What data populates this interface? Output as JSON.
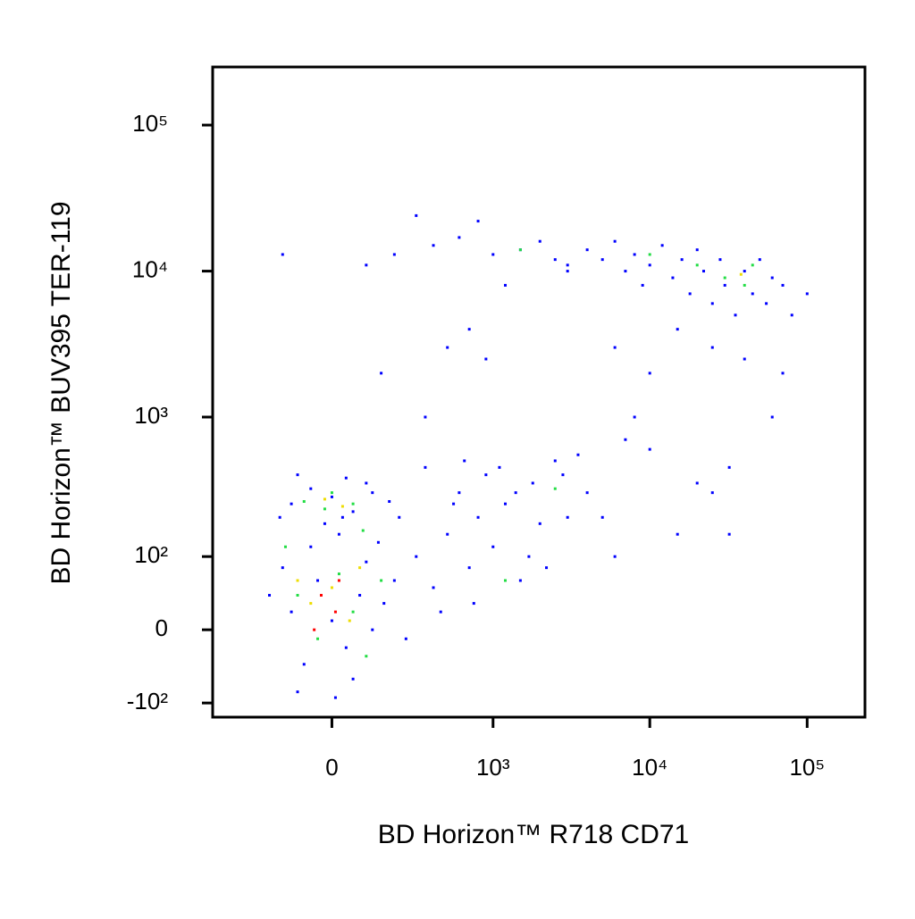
{
  "chart_data": {
    "type": "scatter",
    "xlabel": "BD Horizon™ R718 CD71",
    "ylabel": "BD Horizon™ BUV395 TER-119",
    "xscale": "asinh",
    "yscale": "asinh",
    "xlim": [
      -530,
      233000
    ],
    "ylim": [
      -130,
      250000
    ],
    "xticks": [
      {
        "value": 0,
        "label": "0"
      },
      {
        "value": 1000,
        "label": "10³"
      },
      {
        "value": 10000,
        "label": "10⁴"
      },
      {
        "value": 100000,
        "label": "10⁵"
      }
    ],
    "yticks": [
      {
        "value": -100,
        "label": "-10²"
      },
      {
        "value": 0,
        "label": "0"
      },
      {
        "value": 100,
        "label": "10²"
      },
      {
        "value": 1000,
        "label": "10³"
      },
      {
        "value": 10000,
        "label": "10⁴"
      },
      {
        "value": 100000,
        "label": "10⁵"
      }
    ],
    "series": [
      {
        "color": "#0000ff",
        "x": [
          -120,
          -80,
          -40,
          0,
          40,
          80,
          120,
          -150,
          -60,
          20,
          60,
          100,
          160,
          -100,
          30,
          200,
          250,
          -200,
          10,
          140,
          -120,
          -60,
          0,
          60,
          120,
          -160,
          40,
          -20,
          180,
          -100,
          100,
          220,
          300,
          400,
          500,
          600,
          700,
          800,
          900,
          1000,
          1200,
          1500,
          1800,
          2000,
          2500,
          3000,
          350,
          450,
          550,
          650,
          750,
          1100,
          1400,
          1700,
          2200,
          2800,
          3500,
          4000,
          5000,
          6000,
          7000,
          10000,
          15000,
          25000,
          32000,
          32000,
          8000,
          20000,
          -150,
          100,
          200,
          300,
          400,
          500,
          600,
          700,
          800,
          1000,
          1200,
          1500,
          2000,
          2500,
          3000,
          150,
          350,
          900,
          4000,
          5000,
          6000,
          7000,
          8000,
          9000,
          10000,
          12000,
          14000,
          16000,
          18000,
          20000,
          22000,
          25000,
          28000,
          30000,
          35000,
          40000,
          45000,
          50000,
          55000,
          60000,
          70000,
          80000,
          100000,
          15000,
          25000,
          40000,
          6000,
          10000,
          70000,
          60000,
          3000
        ],
        "values": [
          20,
          -40,
          60,
          10,
          -20,
          40,
          0,
          80,
          120,
          150,
          -60,
          90,
          30,
          -80,
          200,
          60,
          -10,
          40,
          -90,
          130,
          250,
          320,
          280,
          220,
          300,
          200,
          380,
          180,
          260,
          400,
          350,
          200,
          100,
          50,
          150,
          300,
          80,
          200,
          400,
          120,
          250,
          60,
          350,
          180,
          500,
          200,
          450,
          20,
          250,
          500,
          30,
          450,
          300,
          100,
          80,
          400,
          550,
          300,
          200,
          100,
          700,
          600,
          150,
          300,
          450,
          150,
          1000,
          350,
          13000,
          11000,
          13000,
          24000,
          15000,
          3000,
          17000,
          4000,
          22000,
          13000,
          8000,
          14000,
          16000,
          12000,
          10000,
          2000,
          1000,
          2500,
          14000,
          12000,
          16000,
          10000,
          13000,
          8000,
          11000,
          15000,
          9000,
          12000,
          7000,
          14000,
          10000,
          6000,
          12000,
          8000,
          5000,
          10000,
          7000,
          12000,
          6000,
          9000,
          8000,
          5000,
          7000,
          4000,
          3000,
          2500,
          3000,
          2000,
          2000,
          1000,
          11000
        ]
      },
      {
        "color": "#22dd44",
        "x": [
          -100,
          -40,
          20,
          60,
          -80,
          0,
          60,
          -140,
          100,
          150,
          30000,
          40000,
          20000,
          45000,
          10000,
          1200,
          1500,
          2500,
          -20,
          90
        ],
        "values": [
          40,
          -10,
          70,
          20,
          260,
          300,
          250,
          120,
          -30,
          60,
          9000,
          8000,
          11000,
          11000,
          13000,
          60,
          14000,
          320,
          230,
          160
        ]
      },
      {
        "color": "#eedd00",
        "x": [
          -60,
          0,
          50,
          -20,
          30,
          38000,
          -100,
          80
        ],
        "values": [
          30,
          50,
          10,
          270,
          240,
          9500,
          60,
          80
        ]
      },
      {
        "color": "#ff0000",
        "x": [
          -30,
          10,
          -50,
          20
        ],
        "values": [
          40,
          20,
          0,
          60
        ]
      }
    ]
  }
}
